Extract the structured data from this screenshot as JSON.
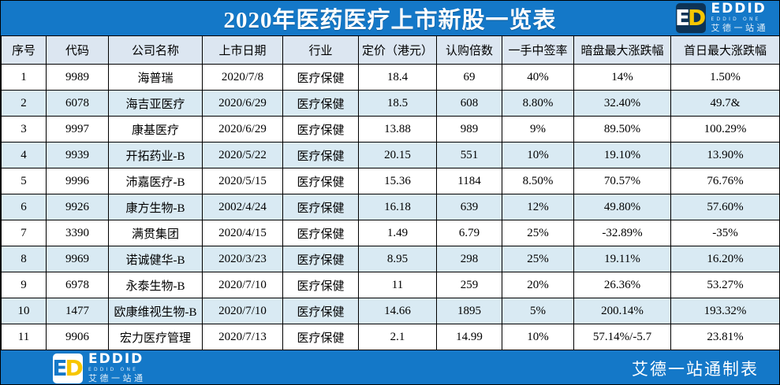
{
  "chart_data": {
    "type": "table",
    "title": "2020年医药医疗上市新股一览表",
    "columns": [
      "序号",
      "代码",
      "公司名称",
      "上市日期",
      "行业",
      "定价（港元）",
      "认购倍数",
      "一手中签率",
      "暗盘最大涨跌幅",
      "首日最大涨跌幅"
    ],
    "rows": [
      [
        "1",
        "9989",
        "海普瑞",
        "2020/7/8",
        "医疗保健",
        "18.4",
        "69",
        "40%",
        "14%",
        "1.50%"
      ],
      [
        "2",
        "6078",
        "海吉亚医疗",
        "2020/6/29",
        "医疗保健",
        "18.5",
        "608",
        "8.80%",
        "32.40%",
        "49.7&"
      ],
      [
        "3",
        "9997",
        "康基医疗",
        "2020/6/29",
        "医疗保健",
        "13.88",
        "989",
        "9%",
        "89.50%",
        "100.29%"
      ],
      [
        "4",
        "9939",
        "开拓药业-B",
        "2020/5/22",
        "医疗保健",
        "20.15",
        "551",
        "10%",
        "19.10%",
        "13.90%"
      ],
      [
        "5",
        "9996",
        "沛嘉医疗-B",
        "2020/5/15",
        "医疗保健",
        "15.36",
        "1184",
        "8.50%",
        "70.57%",
        "76.76%"
      ],
      [
        "6",
        "9926",
        "康方生物-B",
        "2002/4/24",
        "医疗保健",
        "16.18",
        "639",
        "12%",
        "49.80%",
        "57.60%"
      ],
      [
        "7",
        "3390",
        "满贯集团",
        "2020/4/15",
        "医疗保健",
        "1.49",
        "6.79",
        "25%",
        "-32.89%",
        "-35%"
      ],
      [
        "8",
        "9969",
        "诺诚健华-B",
        "2020/3/23",
        "医疗保健",
        "8.95",
        "298",
        "25%",
        "19.11%",
        "16.20%"
      ],
      [
        "9",
        "6978",
        "永泰生物-B",
        "2020/7/10",
        "医疗保健",
        "11",
        "259",
        "20%",
        "26.36%",
        "53.27%"
      ],
      [
        "10",
        "1477",
        "欧康维视生物-B",
        "2020/7/10",
        "医疗保健",
        "14.66",
        "1895",
        "5%",
        "200.14%",
        "193.32%"
      ],
      [
        "11",
        "9906",
        "宏力医疗管理",
        "2020/7/13",
        "医疗保健",
        "2.1",
        "14.99",
        "10%",
        "57.14%/-5.7",
        "23.81%"
      ]
    ]
  },
  "logo": {
    "mark_e": "E",
    "mark_d": "D",
    "name": "EDDID",
    "subtitle": "EDDID ONE",
    "chinese": "艾德一站通"
  },
  "footer": {
    "credit": "艾德一站通制表"
  },
  "colors": {
    "accent_blue": "#1478c8",
    "logo_navy": "#0d3355",
    "logo_yellow": "#f7c600",
    "row_alt": "#d9eaf3",
    "header_row": "#dce6f1"
  }
}
